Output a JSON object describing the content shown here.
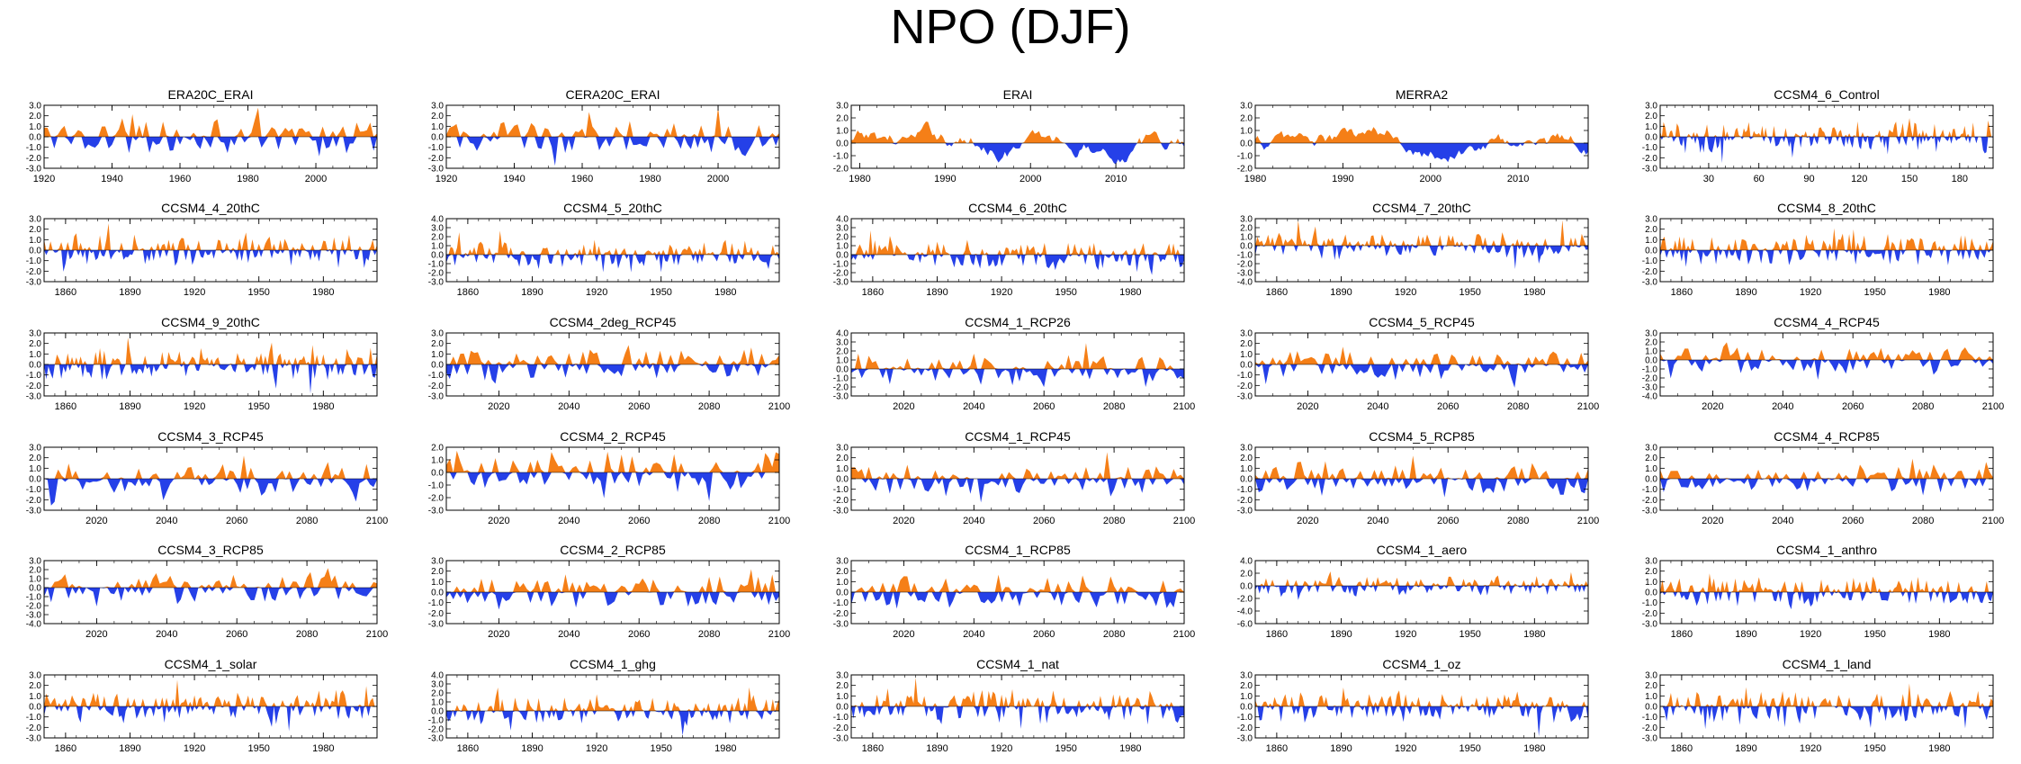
{
  "title": "NPO (DJF)",
  "colors": {
    "positive": "#f57f17",
    "negative": "#2540e8",
    "frame": "#000000"
  },
  "chart_data": [
    {
      "type": "area",
      "title": "ERA20C_ERAI",
      "xlim": [
        1920,
        2018
      ],
      "xticks": [
        1920,
        1940,
        1960,
        1980,
        2000
      ],
      "ylim": [
        -3,
        3
      ],
      "yticks": [
        "3.0",
        "2.0",
        "1.0",
        "0.0",
        "-1.0",
        "-2.0",
        "-3.0"
      ]
    },
    {
      "type": "area",
      "title": "CERA20C_ERAI",
      "xlim": [
        1920,
        2018
      ],
      "xticks": [
        1920,
        1940,
        1960,
        1980,
        2000
      ],
      "ylim": [
        -3,
        3
      ],
      "yticks": [
        "3.0",
        "2.0",
        "1.0",
        "0.0",
        "-1.0",
        "-2.0",
        "-3.0"
      ]
    },
    {
      "type": "area",
      "title": "ERAI",
      "xlim": [
        1979,
        2018
      ],
      "xticks": [
        1980,
        1990,
        2000,
        2010
      ],
      "ylim": [
        -2,
        3
      ],
      "yticks": [
        "3.0",
        "2.0",
        "1.0",
        "0.0",
        "-1.0",
        "-2.0"
      ]
    },
    {
      "type": "area",
      "title": "MERRA2",
      "xlim": [
        1980,
        2018
      ],
      "xticks": [
        1980,
        1990,
        2000,
        2010
      ],
      "ylim": [
        -2,
        3
      ],
      "yticks": [
        "3.0",
        "2.0",
        "1.0",
        "0.0",
        "-1.0",
        "-2.0"
      ]
    },
    {
      "type": "area",
      "title": "CCSM4_6_Control",
      "xlim": [
        1,
        200
      ],
      "xticks": [
        30,
        60,
        90,
        120,
        150,
        180
      ],
      "ylim": [
        -3,
        3
      ],
      "yticks": [
        "3.0",
        "2.0",
        "1.0",
        "0.0",
        "-1.0",
        "-2.0",
        "-3.0"
      ]
    },
    {
      "type": "area",
      "title": "CCSM4_4_20thC",
      "xlim": [
        1850,
        2005
      ],
      "xticks": [
        1860,
        1890,
        1920,
        1950,
        1980
      ],
      "ylim": [
        -3,
        3
      ],
      "yticks": [
        "3.0",
        "2.0",
        "1.0",
        "0.0",
        "-1.0",
        "-2.0",
        "-3.0"
      ]
    },
    {
      "type": "area",
      "title": "CCSM4_5_20thC",
      "xlim": [
        1850,
        2005
      ],
      "xticks": [
        1860,
        1890,
        1920,
        1950,
        1980
      ],
      "ylim": [
        -3,
        4
      ],
      "yticks": [
        "4.0",
        "3.0",
        "2.0",
        "1.0",
        "0.0",
        "-1.0",
        "-2.0",
        "-3.0"
      ]
    },
    {
      "type": "area",
      "title": "CCSM4_6_20thC",
      "xlim": [
        1850,
        2005
      ],
      "xticks": [
        1860,
        1890,
        1920,
        1950,
        1980
      ],
      "ylim": [
        -3,
        4
      ],
      "yticks": [
        "4.0",
        "3.0",
        "2.0",
        "1.0",
        "0.0",
        "-1.0",
        "-2.0",
        "-3.0"
      ]
    },
    {
      "type": "area",
      "title": "CCSM4_7_20thC",
      "xlim": [
        1850,
        2005
      ],
      "xticks": [
        1860,
        1890,
        1920,
        1950,
        1980
      ],
      "ylim": [
        -4,
        3
      ],
      "yticks": [
        "3.0",
        "2.0",
        "1.0",
        "0.0",
        "-1.0",
        "-2.0",
        "-3.0",
        "-4.0"
      ]
    },
    {
      "type": "area",
      "title": "CCSM4_8_20thC",
      "xlim": [
        1850,
        2005
      ],
      "xticks": [
        1860,
        1890,
        1920,
        1950,
        1980
      ],
      "ylim": [
        -3,
        3
      ],
      "yticks": [
        "3.0",
        "2.0",
        "1.0",
        "0.0",
        "-1.0",
        "-2.0",
        "-3.0"
      ]
    },
    {
      "type": "area",
      "title": "CCSM4_9_20thC",
      "xlim": [
        1850,
        2005
      ],
      "xticks": [
        1860,
        1890,
        1920,
        1950,
        1980
      ],
      "ylim": [
        -3,
        3
      ],
      "yticks": [
        "3.0",
        "2.0",
        "1.0",
        "0.0",
        "-1.0",
        "-2.0",
        "-3.0"
      ]
    },
    {
      "type": "area",
      "title": "CCSM4_2deg_RCP45",
      "xlim": [
        2005,
        2100
      ],
      "xticks": [
        2020,
        2040,
        2060,
        2080,
        2100
      ],
      "ylim": [
        -3,
        3
      ],
      "yticks": [
        "3.0",
        "2.0",
        "1.0",
        "0.0",
        "-1.0",
        "-2.0",
        "-3.0"
      ]
    },
    {
      "type": "area",
      "title": "CCSM4_1_RCP26",
      "xlim": [
        2005,
        2100
      ],
      "xticks": [
        2020,
        2040,
        2060,
        2080,
        2100
      ],
      "ylim": [
        -3,
        4
      ],
      "yticks": [
        "4.0",
        "3.0",
        "2.0",
        "1.0",
        "0.0",
        "-1.0",
        "-2.0",
        "-3.0"
      ]
    },
    {
      "type": "area",
      "title": "CCSM4_5_RCP45",
      "xlim": [
        2005,
        2100
      ],
      "xticks": [
        2020,
        2040,
        2060,
        2080,
        2100
      ],
      "ylim": [
        -3,
        3
      ],
      "yticks": [
        "3.0",
        "2.0",
        "1.0",
        "0.0",
        "-1.0",
        "-2.0",
        "-3.0"
      ]
    },
    {
      "type": "area",
      "title": "CCSM4_4_RCP45",
      "xlim": [
        2005,
        2100
      ],
      "xticks": [
        2020,
        2040,
        2060,
        2080,
        2100
      ],
      "ylim": [
        -4,
        3
      ],
      "yticks": [
        "3.0",
        "2.0",
        "1.0",
        "0.0",
        "-1.0",
        "-2.0",
        "-3.0",
        "-4.0"
      ]
    },
    {
      "type": "area",
      "title": "CCSM4_3_RCP45",
      "xlim": [
        2005,
        2100
      ],
      "xticks": [
        2020,
        2040,
        2060,
        2080,
        2100
      ],
      "ylim": [
        -3,
        3
      ],
      "yticks": [
        "3.0",
        "2.0",
        "1.0",
        "0.0",
        "-1.0",
        "-2.0",
        "-3.0"
      ]
    },
    {
      "type": "area",
      "title": "CCSM4_2_RCP45",
      "xlim": [
        2005,
        2100
      ],
      "xticks": [
        2020,
        2040,
        2060,
        2080,
        2100
      ],
      "ylim": [
        -3,
        2
      ],
      "yticks": [
        "2.0",
        "1.0",
        "0.0",
        "-1.0",
        "-2.0",
        "-3.0"
      ]
    },
    {
      "type": "area",
      "title": "CCSM4_1_RCP45",
      "xlim": [
        2005,
        2100
      ],
      "xticks": [
        2020,
        2040,
        2060,
        2080,
        2100
      ],
      "ylim": [
        -3,
        3
      ],
      "yticks": [
        "3.0",
        "2.0",
        "1.0",
        "0.0",
        "-1.0",
        "-2.0",
        "-3.0"
      ]
    },
    {
      "type": "area",
      "title": "CCSM4_5_RCP85",
      "xlim": [
        2005,
        2100
      ],
      "xticks": [
        2020,
        2040,
        2060,
        2080,
        2100
      ],
      "ylim": [
        -3,
        3
      ],
      "yticks": [
        "3.0",
        "2.0",
        "1.0",
        "0.0",
        "-1.0",
        "-2.0",
        "-3.0"
      ]
    },
    {
      "type": "area",
      "title": "CCSM4_4_RCP85",
      "xlim": [
        2005,
        2100
      ],
      "xticks": [
        2020,
        2040,
        2060,
        2080,
        2100
      ],
      "ylim": [
        -3,
        3
      ],
      "yticks": [
        "3.0",
        "2.0",
        "1.0",
        "0.0",
        "-1.0",
        "-2.0",
        "-3.0"
      ]
    },
    {
      "type": "area",
      "title": "CCSM4_3_RCP85",
      "xlim": [
        2005,
        2100
      ],
      "xticks": [
        2020,
        2040,
        2060,
        2080,
        2100
      ],
      "ylim": [
        -4,
        3
      ],
      "yticks": [
        "3.0",
        "2.0",
        "1.0",
        "0.0",
        "-1.0",
        "-2.0",
        "-3.0",
        "-4.0"
      ]
    },
    {
      "type": "area",
      "title": "CCSM4_2_RCP85",
      "xlim": [
        2005,
        2100
      ],
      "xticks": [
        2020,
        2040,
        2060,
        2080,
        2100
      ],
      "ylim": [
        -3,
        3
      ],
      "yticks": [
        "3.0",
        "2.0",
        "1.0",
        "0.0",
        "-1.0",
        "-2.0",
        "-3.0"
      ]
    },
    {
      "type": "area",
      "title": "CCSM4_1_RCP85",
      "xlim": [
        2005,
        2100
      ],
      "xticks": [
        2020,
        2040,
        2060,
        2080,
        2100
      ],
      "ylim": [
        -3,
        3
      ],
      "yticks": [
        "3.0",
        "2.0",
        "1.0",
        "0.0",
        "-1.0",
        "-2.0",
        "-3.0"
      ]
    },
    {
      "type": "area",
      "title": "CCSM4_1_aero",
      "xlim": [
        1850,
        2005
      ],
      "xticks": [
        1860,
        1890,
        1920,
        1950,
        1980
      ],
      "ylim": [
        -6,
        4
      ],
      "yticks": [
        "4.0",
        "2.0",
        "0.0",
        "-2.0",
        "-4.0",
        "-6.0"
      ]
    },
    {
      "type": "area",
      "title": "CCSM4_1_anthro",
      "xlim": [
        1850,
        2005
      ],
      "xticks": [
        1860,
        1890,
        1920,
        1950,
        1980
      ],
      "ylim": [
        -3,
        3
      ],
      "yticks": [
        "3.0",
        "2.0",
        "1.0",
        "0.0",
        "-1.0",
        "-2.0",
        "-3.0"
      ]
    },
    {
      "type": "area",
      "title": "CCSM4_1_solar",
      "xlim": [
        1850,
        2005
      ],
      "xticks": [
        1860,
        1890,
        1920,
        1950,
        1980
      ],
      "ylim": [
        -3,
        3
      ],
      "yticks": [
        "3.0",
        "2.0",
        "1.0",
        "0.0",
        "-1.0",
        "-2.0",
        "-3.0"
      ]
    },
    {
      "type": "area",
      "title": "CCSM4_1_ghg",
      "xlim": [
        1850,
        2005
      ],
      "xticks": [
        1860,
        1890,
        1920,
        1950,
        1980
      ],
      "ylim": [
        -3,
        4
      ],
      "yticks": [
        "4.0",
        "3.0",
        "2.0",
        "1.0",
        "0.0",
        "-1.0",
        "-2.0",
        "-3.0"
      ]
    },
    {
      "type": "area",
      "title": "CCSM4_1_nat",
      "xlim": [
        1850,
        2005
      ],
      "xticks": [
        1860,
        1890,
        1920,
        1950,
        1980
      ],
      "ylim": [
        -3,
        3
      ],
      "yticks": [
        "3.0",
        "2.0",
        "1.0",
        "0.0",
        "-1.0",
        "-2.0",
        "-3.0"
      ]
    },
    {
      "type": "area",
      "title": "CCSM4_1_oz",
      "xlim": [
        1850,
        2005
      ],
      "xticks": [
        1860,
        1890,
        1920,
        1950,
        1980
      ],
      "ylim": [
        -3,
        3
      ],
      "yticks": [
        "3.0",
        "2.0",
        "1.0",
        "0.0",
        "-1.0",
        "-2.0",
        "-3.0"
      ]
    },
    {
      "type": "area",
      "title": "CCSM4_1_land",
      "xlim": [
        1850,
        2005
      ],
      "xticks": [
        1860,
        1890,
        1920,
        1950,
        1980
      ],
      "ylim": [
        -3,
        3
      ],
      "yticks": [
        "3.0",
        "2.0",
        "1.0",
        "0.0",
        "-1.0",
        "-2.0",
        "-3.0"
      ]
    }
  ]
}
